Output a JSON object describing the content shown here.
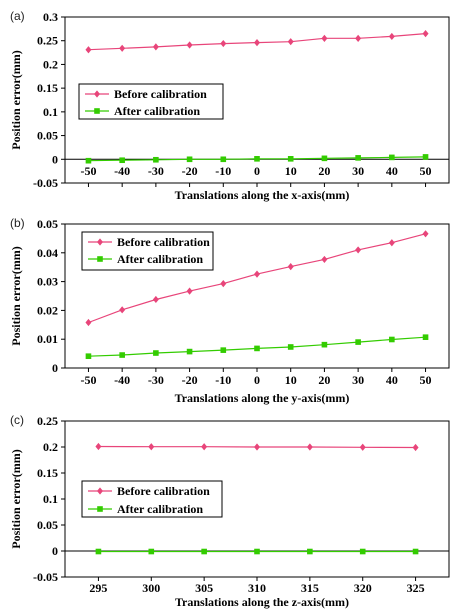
{
  "chart_data": [
    {
      "type": "line",
      "panel_label": "(a)",
      "xlabel": "Translations along the x-axis(mm)",
      "ylabel": "Position error(mm)",
      "x": [
        -50,
        -40,
        -30,
        -20,
        -10,
        0,
        10,
        20,
        30,
        40,
        50
      ],
      "x_tick_labels": [
        "-50",
        "-40",
        "-30",
        "-20",
        "-10",
        "0",
        "10",
        "20",
        "30",
        "40",
        "50"
      ],
      "y_tick_labels": [
        "-0.05",
        "0",
        "0.05",
        "0.1",
        "0.15",
        "0.2",
        "0.25",
        "0.3"
      ],
      "ylim": [
        -0.05,
        0.3
      ],
      "grid": false,
      "legend_position": "center-left",
      "series": [
        {
          "name": "Before calibration",
          "color": "#e8457a",
          "marker": "diamond",
          "values": [
            0.231,
            0.234,
            0.237,
            0.241,
            0.244,
            0.246,
            0.248,
            0.255,
            0.255,
            0.259,
            0.265
          ]
        },
        {
          "name": "After calibration",
          "color": "#33cc00",
          "marker": "square",
          "values": [
            -0.003,
            -0.002,
            -0.001,
            0.0,
            0.0,
            0.001,
            0.001,
            0.002,
            0.003,
            0.004,
            0.005
          ]
        }
      ]
    },
    {
      "type": "line",
      "panel_label": "(b)",
      "xlabel": "Translations along the y-axis(mm)",
      "ylabel": "Position error(mm)",
      "x": [
        -50,
        -40,
        -30,
        -20,
        -10,
        0,
        10,
        20,
        30,
        40,
        50
      ],
      "x_tick_labels": [
        "-50",
        "-40",
        "-30",
        "-20",
        "-10",
        "0",
        "10",
        "20",
        "30",
        "40",
        "50"
      ],
      "y_tick_labels": [
        "0",
        "0.01",
        "0.02",
        "0.03",
        "0.04",
        "0.05"
      ],
      "ylim": [
        0,
        0.05
      ],
      "grid": false,
      "legend_position": "top-left",
      "series": [
        {
          "name": "Before calibration",
          "color": "#e8457a",
          "marker": "diamond",
          "values": [
            0.0158,
            0.0202,
            0.0238,
            0.0267,
            0.0293,
            0.0326,
            0.0352,
            0.0377,
            0.041,
            0.0435,
            0.0466
          ]
        },
        {
          "name": "After calibration",
          "color": "#33cc00",
          "marker": "square",
          "values": [
            0.0041,
            0.0045,
            0.0052,
            0.0057,
            0.0062,
            0.0068,
            0.0073,
            0.0081,
            0.009,
            0.0099,
            0.0107
          ]
        }
      ]
    },
    {
      "type": "line",
      "panel_label": "(c)",
      "xlabel": "Translations along the z-axis(mm)",
      "ylabel": "Position error(mm)",
      "x": [
        295,
        300,
        305,
        310,
        315,
        320,
        325
      ],
      "x_tick_labels": [
        "295",
        "300",
        "305",
        "310",
        "315",
        "320",
        "325"
      ],
      "y_tick_labels": [
        "-0.05",
        "0",
        "0.05",
        "0.1",
        "0.15",
        "0.2",
        "0.25"
      ],
      "ylim": [
        -0.05,
        0.25
      ],
      "grid": false,
      "legend_position": "center-left",
      "series": [
        {
          "name": "Before calibration",
          "color": "#e8457a",
          "marker": "diamond",
          "values": [
            0.201,
            0.2005,
            0.2005,
            0.2,
            0.2,
            0.1995,
            0.199
          ]
        },
        {
          "name": "After calibration",
          "color": "#33cc00",
          "marker": "square",
          "values": [
            -0.001,
            -0.001,
            -0.001,
            -0.001,
            -0.001,
            -0.001,
            -0.001
          ]
        }
      ]
    }
  ]
}
